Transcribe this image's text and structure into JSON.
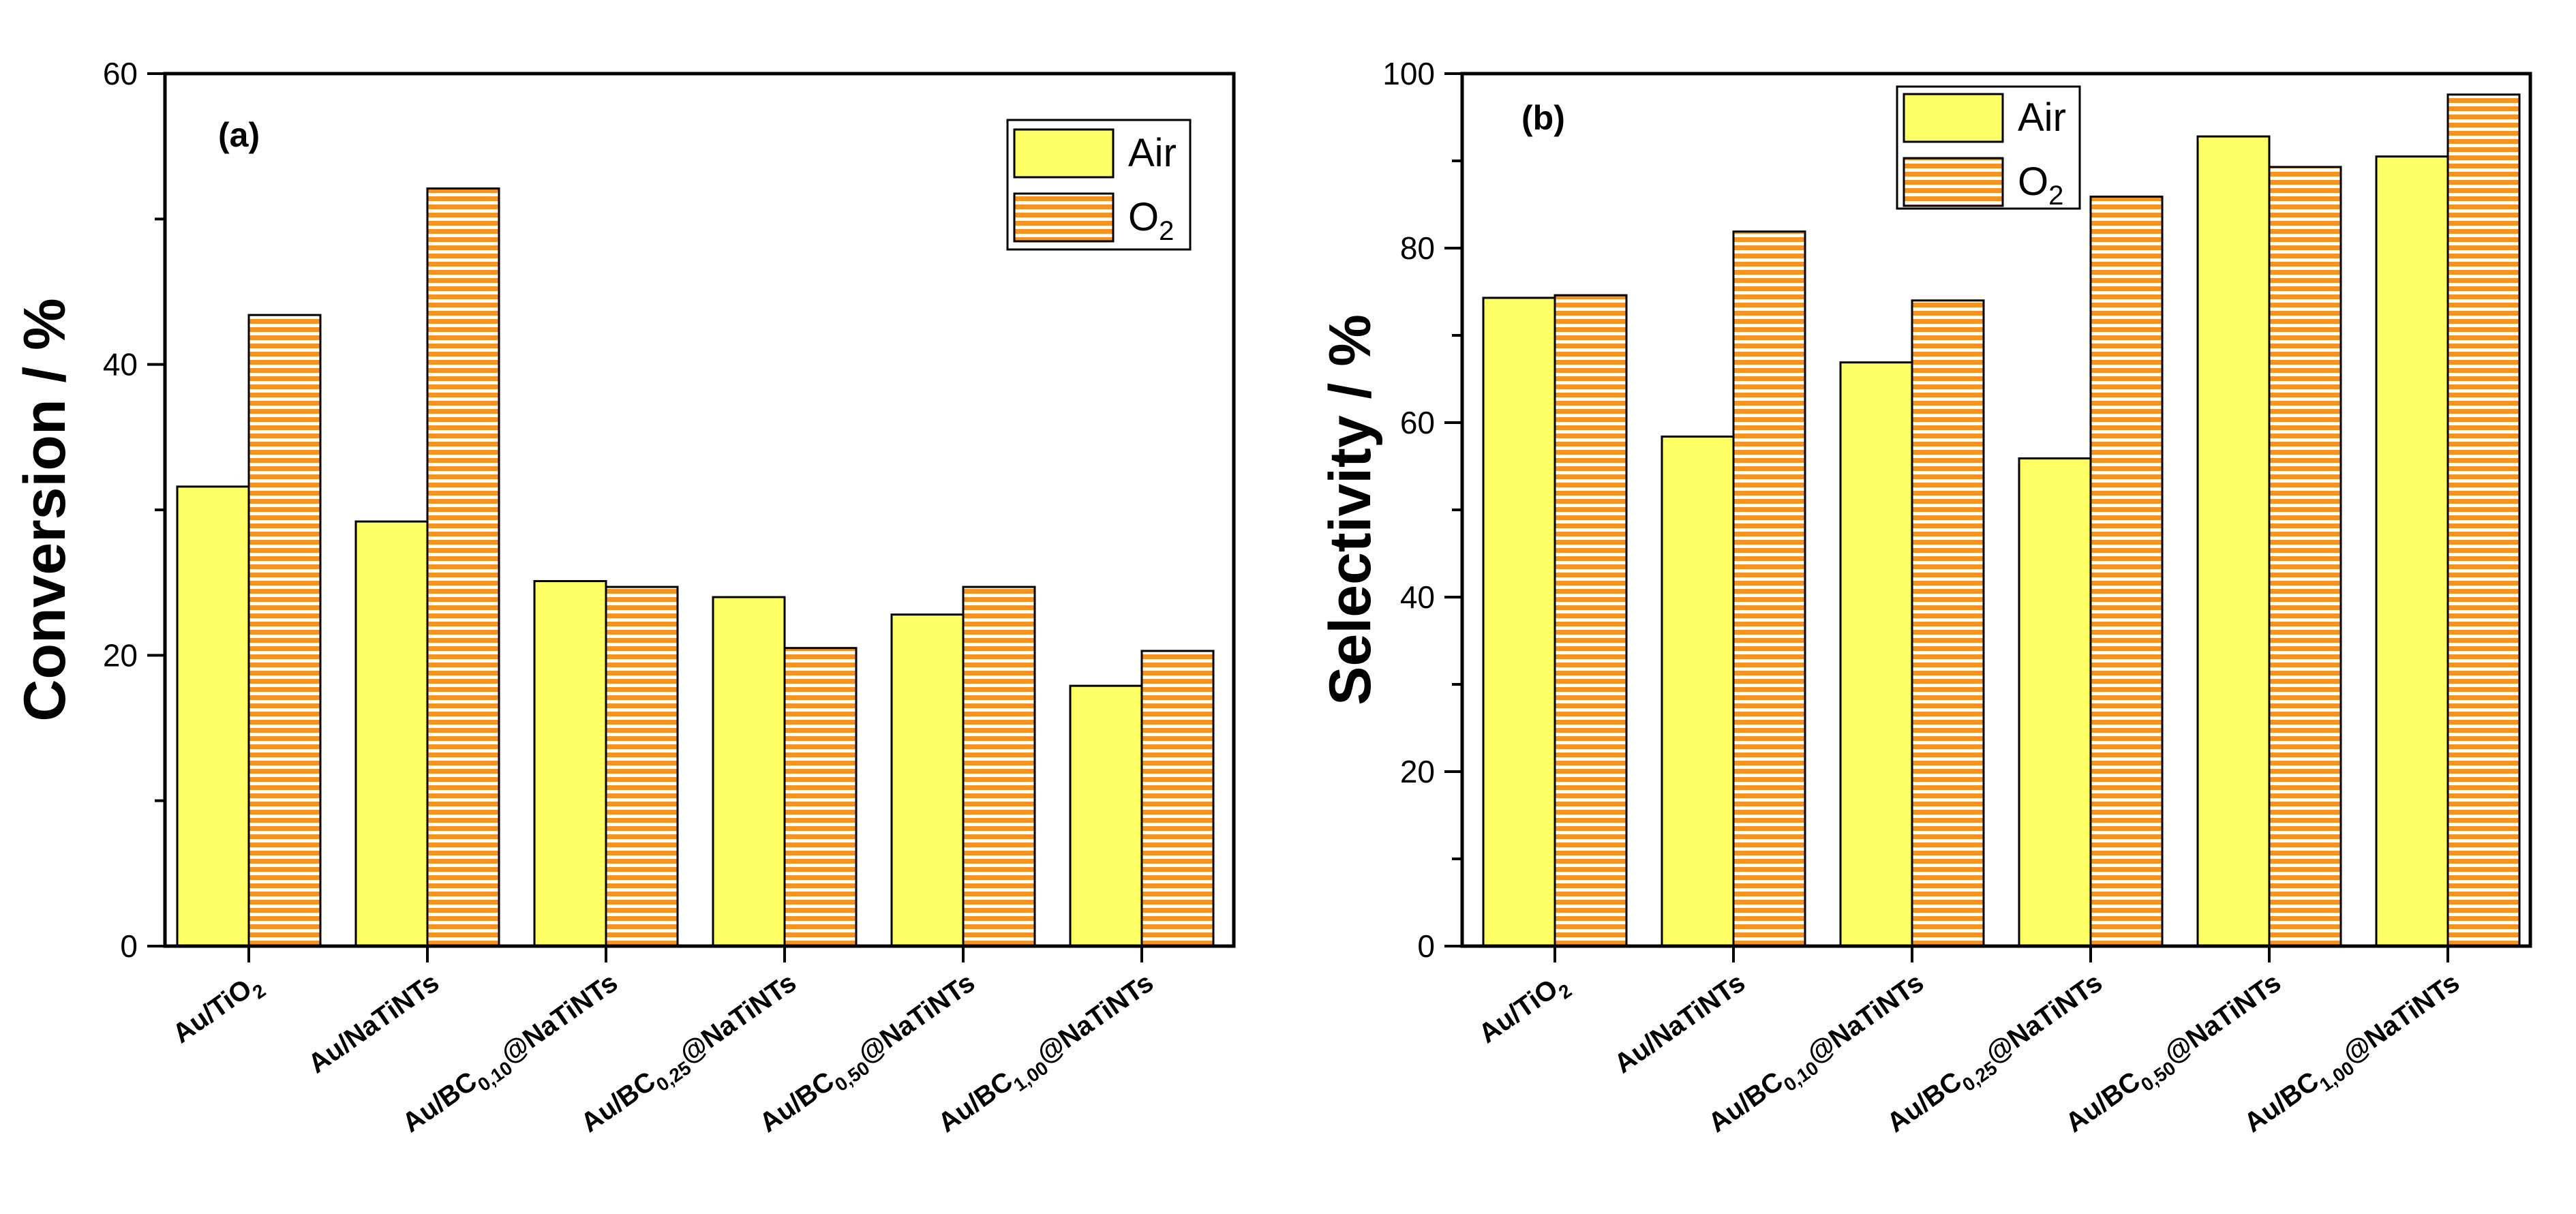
{
  "colors": {
    "air_fill": "#ffff66",
    "o2_stripe": "#f7931e",
    "o2_bg": "#ffffff",
    "axis": "#000000"
  },
  "chart_data": [
    {
      "type": "bar",
      "panel": "(a)",
      "ylabel": "Conversion / %",
      "xlabel": "",
      "ylim": [
        0,
        60
      ],
      "major_ticks": [
        0,
        20,
        40,
        60
      ],
      "minor_tick_step": 10,
      "grid": false,
      "legend_position": "top-right",
      "categories": [
        {
          "main": "Au/TiO",
          "sub": "2",
          "tail": ""
        },
        {
          "main": "Au/NaTiNTs",
          "sub": "",
          "tail": ""
        },
        {
          "main": "Au/BC",
          "sub": "0,10",
          "tail": "@NaTiNTs"
        },
        {
          "main": "Au/BC",
          "sub": "0,25",
          "tail": "@NaTiNTs"
        },
        {
          "main": "Au/BC",
          "sub": "0,50",
          "tail": "@NaTiNTs"
        },
        {
          "main": "Au/BC",
          "sub": "1,00",
          "tail": "@NaTiNTs"
        }
      ],
      "series": [
        {
          "name": "Air",
          "name_sub": "",
          "pattern": "solid",
          "values": [
            31.6,
            29.2,
            25.1,
            24.0,
            22.8,
            17.9
          ]
        },
        {
          "name": "O",
          "name_sub": "2",
          "pattern": "hstripe",
          "values": [
            43.4,
            52.1,
            24.7,
            20.5,
            24.7,
            20.3
          ]
        }
      ]
    },
    {
      "type": "bar",
      "panel": "(b)",
      "ylabel": "Selectivity / %",
      "xlabel": "",
      "ylim": [
        0,
        100
      ],
      "major_ticks": [
        0,
        20,
        40,
        60,
        80,
        100
      ],
      "minor_tick_step": 10,
      "grid": false,
      "legend_position": "top-center",
      "categories": [
        {
          "main": "Au/TiO",
          "sub": "2",
          "tail": ""
        },
        {
          "main": "Au/NaTiNTs",
          "sub": "",
          "tail": ""
        },
        {
          "main": "Au/BC",
          "sub": "0,10",
          "tail": "@NaTiNTs"
        },
        {
          "main": "Au/BC",
          "sub": "0,25",
          "tail": "@NaTiNTs"
        },
        {
          "main": "Au/BC",
          "sub": "0,50",
          "tail": "@NaTiNTs"
        },
        {
          "main": "Au/BC",
          "sub": "1,00",
          "tail": "@NaTiNTs"
        }
      ],
      "series": [
        {
          "name": "Air",
          "name_sub": "",
          "pattern": "solid",
          "values": [
            74.3,
            58.4,
            66.9,
            55.9,
            92.8,
            90.5
          ]
        },
        {
          "name": "O",
          "name_sub": "2",
          "pattern": "hstripe",
          "values": [
            74.6,
            81.9,
            74.0,
            85.9,
            89.3,
            97.6
          ]
        }
      ]
    }
  ]
}
